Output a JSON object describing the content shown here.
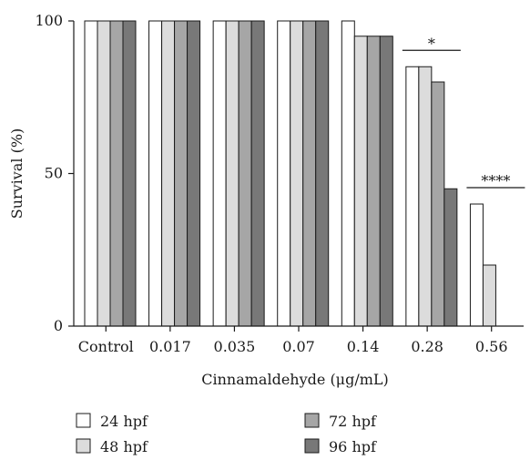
{
  "chart_data": {
    "type": "bar",
    "xlabel": "Cinnamaldehyde (μg/mL)",
    "ylabel": "Survival (%)",
    "ylim": [
      0,
      100
    ],
    "yticks": [
      0,
      50,
      100
    ],
    "categories": [
      "Control",
      "0.017",
      "0.035",
      "0.07",
      "0.14",
      "0.28",
      "0.56"
    ],
    "series": [
      {
        "name": "24 hpf",
        "color": "#ffffff",
        "values": [
          100,
          100,
          100,
          100,
          100,
          85,
          40
        ]
      },
      {
        "name": "48 hpf",
        "color": "#dcdcdc",
        "values": [
          100,
          100,
          100,
          100,
          95,
          85,
          20
        ]
      },
      {
        "name": "72 hpf",
        "color": "#a6a6a6",
        "values": [
          100,
          100,
          100,
          100,
          95,
          80,
          0
        ]
      },
      {
        "name": "96 hpf",
        "color": "#787878",
        "values": [
          100,
          100,
          100,
          100,
          95,
          45,
          0
        ]
      }
    ],
    "annotations": [
      {
        "category_index": 5,
        "label": "*"
      },
      {
        "category_index": 6,
        "label": "****"
      }
    ],
    "grid": false,
    "legend_position": "bottom"
  }
}
